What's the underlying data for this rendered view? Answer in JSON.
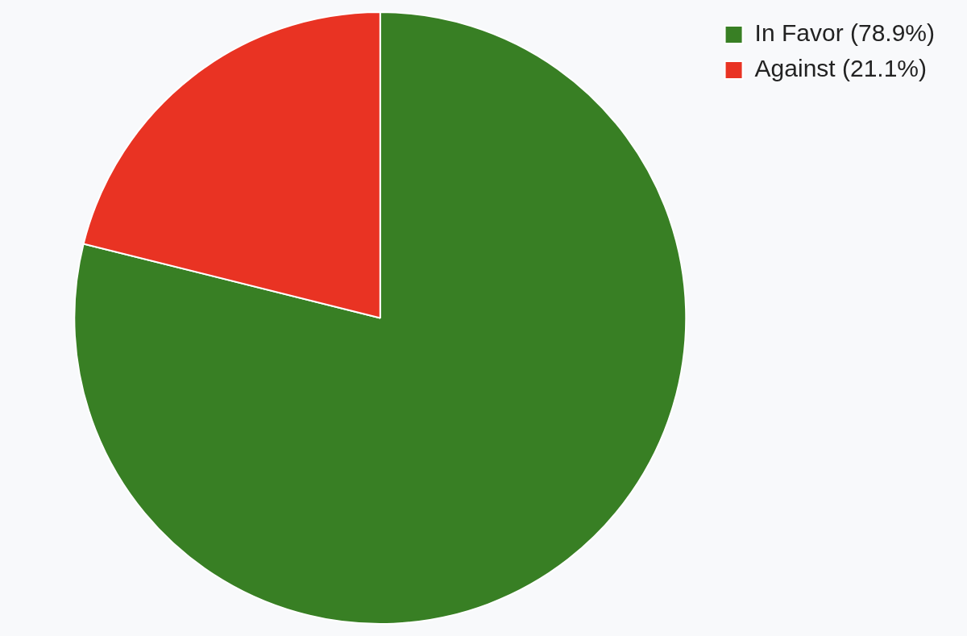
{
  "chart_data": {
    "type": "pie",
    "categories": [
      "In Favor (78.9%)",
      "Against (21.1%)"
    ],
    "values": [
      78.9,
      21.1
    ],
    "colors": [
      "#387f24",
      "#e93323"
    ],
    "legend": "top right"
  }
}
